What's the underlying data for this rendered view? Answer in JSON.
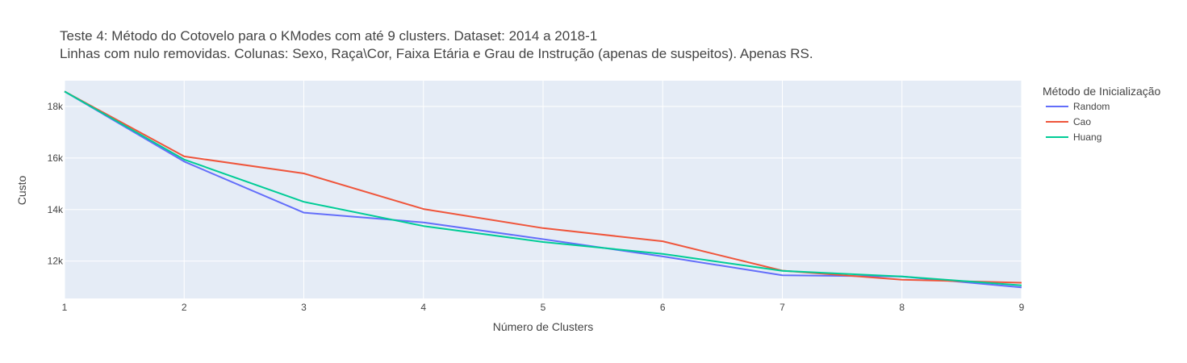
{
  "chart_data": {
    "type": "line",
    "title_line1": "Teste 4: Método do Cotovelo para o KModes com até 9 clusters. Dataset: 2014 a 2018-1",
    "title_line2": "Linhas com nulo removidas. Colunas: Sexo, Raça\\Cor, Faixa Etária e Grau de Instrução (apenas de suspeitos). Apenas RS.",
    "xlabel": "Número de Clusters",
    "ylabel": "Custo",
    "legend_title": "Método de Inicialização",
    "legend_position": "right",
    "grid": true,
    "x": [
      1,
      2,
      3,
      4,
      5,
      6,
      7,
      8,
      9
    ],
    "x_ticks": [
      "1",
      "2",
      "3",
      "4",
      "5",
      "6",
      "7",
      "8",
      "9"
    ],
    "xlim": [
      1,
      9
    ],
    "y_ticks": [
      12000,
      14000,
      16000,
      18000
    ],
    "y_tick_labels": [
      "12k",
      "14k",
      "16k",
      "18k"
    ],
    "ylim": [
      10550,
      19000
    ],
    "series": [
      {
        "name": "Random",
        "color": "#636efa",
        "values": [
          18580,
          15860,
          13880,
          13500,
          12850,
          12180,
          11450,
          11400,
          10980
        ]
      },
      {
        "name": "Cao",
        "color": "#ef553b",
        "values": [
          18580,
          16060,
          15400,
          14020,
          13280,
          12770,
          11630,
          11280,
          11160
        ]
      },
      {
        "name": "Huang",
        "color": "#00cc96",
        "values": [
          18580,
          15940,
          14300,
          13360,
          12740,
          12280,
          11620,
          11400,
          11060
        ]
      }
    ],
    "plot_bg": "#e5ecf6"
  }
}
